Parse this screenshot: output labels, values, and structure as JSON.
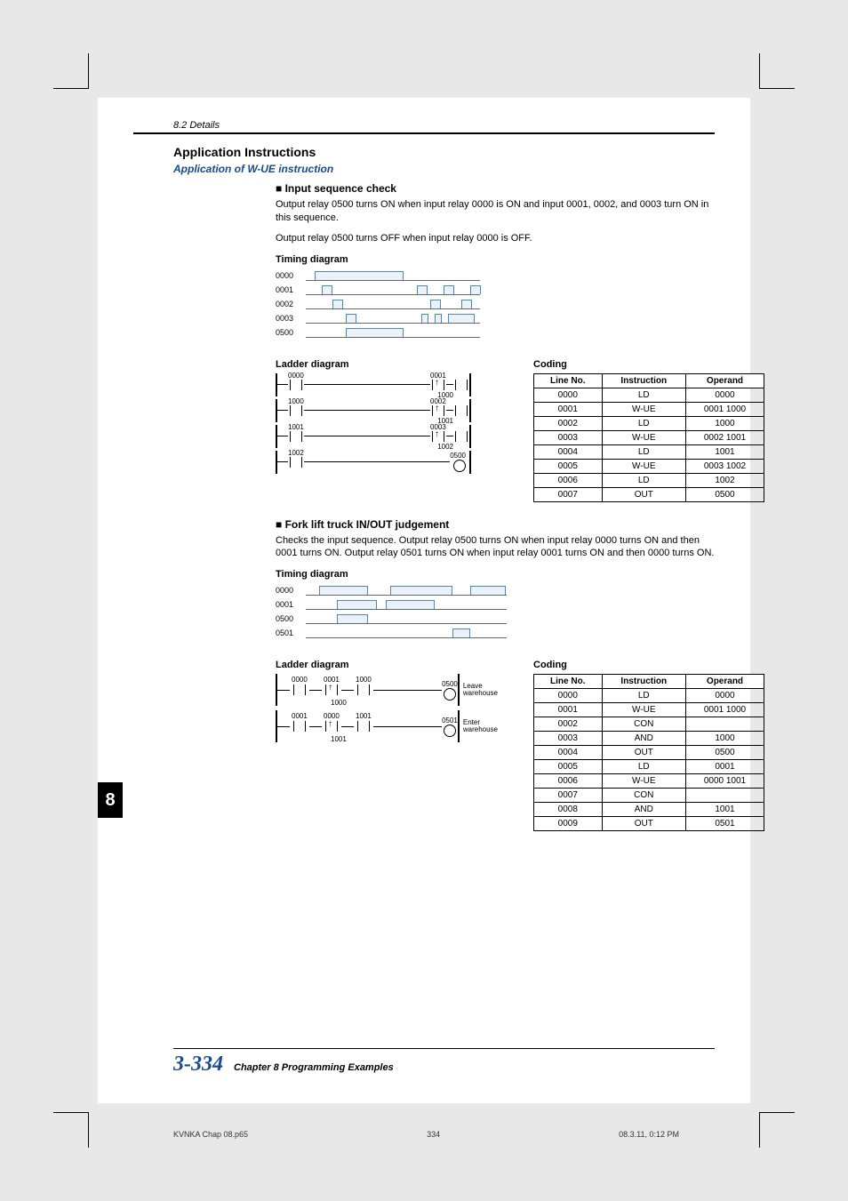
{
  "header": {
    "section_path": "8.2 Details"
  },
  "title": "Application Instructions",
  "subtitle": "Application of W-UE instruction",
  "block1": {
    "heading": "Input sequence check",
    "p1": "Output relay 0500 turns ON when input relay 0000 is ON and input 0001, 0002, and 0003 turn ON in this sequence.",
    "p2": "Output relay 0500 turns OFF when input relay 0000 is OFF.",
    "timing_label": "Timing diagram",
    "ladder_label": "Ladder diagram",
    "coding_label": "Coding",
    "timing_signals": [
      "0000",
      "0001",
      "0002",
      "0003",
      "0500"
    ],
    "ladder": {
      "left_contacts": [
        "0000",
        "1000",
        "1001",
        "1002"
      ],
      "right_pairs": [
        {
          "a": "0001",
          "b": "1000"
        },
        {
          "a": "0002",
          "b": "1001"
        },
        {
          "a": "0003",
          "b": "1002"
        }
      ],
      "output": "0500"
    },
    "coding_headers": [
      "Line No.",
      "Instruction",
      "Operand"
    ],
    "coding_rows": [
      [
        "0000",
        "LD",
        "0000"
      ],
      [
        "0001",
        "W-UE",
        "0001 1000"
      ],
      [
        "0002",
        "LD",
        "1000"
      ],
      [
        "0003",
        "W-UE",
        "0002 1001"
      ],
      [
        "0004",
        "LD",
        "1001"
      ],
      [
        "0005",
        "W-UE",
        "0003 1002"
      ],
      [
        "0006",
        "LD",
        "1002"
      ],
      [
        "0007",
        "OUT",
        "0500"
      ]
    ]
  },
  "block2": {
    "heading": "Fork lift truck IN/OUT judgement",
    "p1": "Checks the input sequence. Output relay 0500 turns ON when input relay 0000 turns ON and then 0001 turns ON. Output relay 0501 turns ON when input relay 0001 turns ON and then 0000 turns ON.",
    "timing_label": "Timing diagram",
    "ladder_label": "Ladder diagram",
    "coding_label": "Coding",
    "timing_signals": [
      "0000",
      "0001",
      "0500",
      "0501"
    ],
    "ladder": {
      "rungs": [
        {
          "c1": "0000",
          "c2": "0001",
          "mem": "1000",
          "c3": "1000",
          "out": "0500",
          "out_text1": "Leave",
          "out_text2": "warehouse"
        },
        {
          "c1": "0001",
          "c2": "0000",
          "mem": "1001",
          "c3": "1001",
          "out": "0501",
          "out_text1": "Enter",
          "out_text2": "warehouse"
        }
      ]
    },
    "coding_headers": [
      "Line No.",
      "Instruction",
      "Operand"
    ],
    "coding_rows": [
      [
        "0000",
        "LD",
        "0000"
      ],
      [
        "0001",
        "W-UE",
        "0001 1000"
      ],
      [
        "0002",
        "CON",
        ""
      ],
      [
        "0003",
        "AND",
        "1000"
      ],
      [
        "0004",
        "OUT",
        "0500"
      ],
      [
        "0005",
        "LD",
        "0001"
      ],
      [
        "0006",
        "W-UE",
        "0000 1001"
      ],
      [
        "0007",
        "CON",
        ""
      ],
      [
        "0008",
        "AND",
        "1001"
      ],
      [
        "0009",
        "OUT",
        "0501"
      ]
    ]
  },
  "tab": "8",
  "footer": {
    "page_no": "3-334",
    "chapter": "Chapter 8   Programming Examples"
  },
  "meta": {
    "file": "KVNKA Chap 08.p65",
    "page": "334",
    "timestamp": "08.3.11, 0:12 PM"
  },
  "colors": {
    "accent_blue": "#1a4a8a",
    "pulse_stroke": "#4a88c0",
    "pulse_fill": "#eaf2f9"
  }
}
